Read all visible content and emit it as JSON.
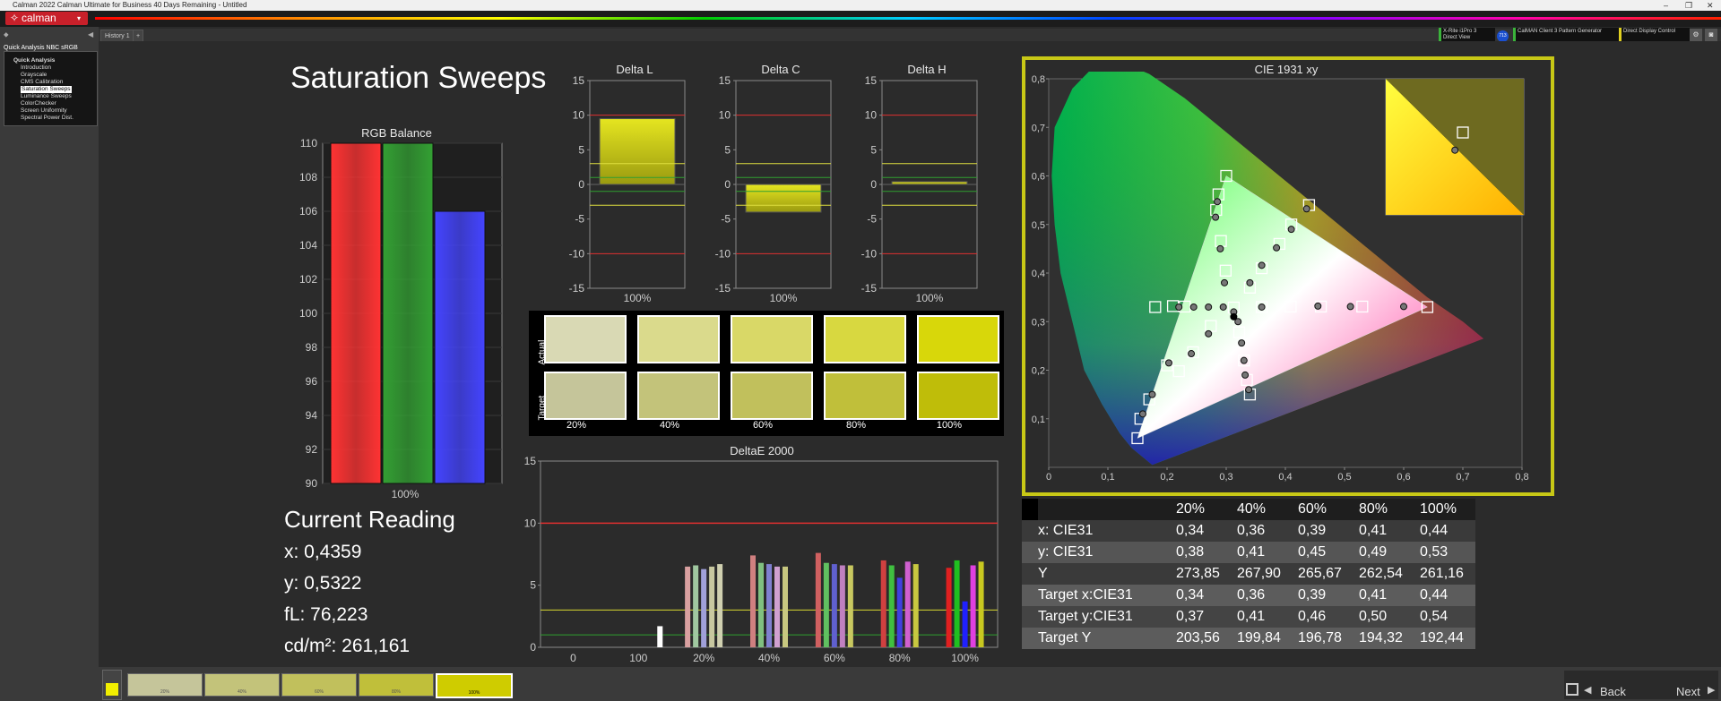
{
  "window": {
    "title": "Calman 2022 Calman Ultimate for Business 40 Days Remaining  - Untitled"
  },
  "app": {
    "logo": "calman"
  },
  "tabs": [
    {
      "label": "History 1"
    }
  ],
  "sidebar": {
    "header": "Quick Analysis NBC sRGB",
    "items": [
      {
        "label": "Quick Analysis"
      },
      {
        "label": "Introduction"
      },
      {
        "label": "Grayscale"
      },
      {
        "label": "CMS Calibration"
      },
      {
        "label": "Saturation Sweeps"
      },
      {
        "label": "Luminance Sweeps"
      },
      {
        "label": "ColorChecker"
      },
      {
        "label": "Screen Uniformity"
      },
      {
        "label": "Spectral Power Dist."
      }
    ]
  },
  "devices": {
    "meter_line1": "X-Rite i1Pro 3",
    "meter_line2": "Direct View",
    "badge": "713",
    "generator": "CalMAN Client 3 Pattern Generator",
    "display": "Direct Display Control"
  },
  "page_title": "Saturation Sweeps",
  "current_reading": {
    "heading": "Current Reading",
    "x": "x: 0,4359",
    "y": "y: 0,5322",
    "fl": "fL: 76,223",
    "cd": "cd/m²: 261,161"
  },
  "swatches": {
    "row_labels": {
      "actual": "Actual",
      "target": "Target"
    },
    "labels": [
      "20%",
      "40%",
      "60%",
      "80%",
      "100%"
    ],
    "actual_colors": [
      "#d9d9b4",
      "#dada8c",
      "#d9d867",
      "#d8d840",
      "#d8d70a"
    ],
    "target_colors": [
      "#c5c59a",
      "#c3c37a",
      "#c1c05c",
      "#c0bf3a",
      "#bfbd09"
    ]
  },
  "data_table": {
    "headers": [
      "20%",
      "40%",
      "60%",
      "80%",
      "100%"
    ],
    "rows": [
      {
        "label": "x: CIE31",
        "values": [
          "0,34",
          "0,36",
          "0,39",
          "0,41",
          "0,44"
        ]
      },
      {
        "label": "y: CIE31",
        "values": [
          "0,38",
          "0,41",
          "0,45",
          "0,49",
          "0,53"
        ]
      },
      {
        "label": "Y",
        "values": [
          "273,85",
          "267,90",
          "265,67",
          "262,54",
          "261,16"
        ]
      },
      {
        "label": "Target x:CIE31",
        "values": [
          "0,34",
          "0,36",
          "0,39",
          "0,41",
          "0,44"
        ]
      },
      {
        "label": "Target y:CIE31",
        "values": [
          "0,37",
          "0,41",
          "0,46",
          "0,50",
          "0,54"
        ]
      },
      {
        "label": "Target Y",
        "values": [
          "203,56",
          "199,84",
          "196,78",
          "194,32",
          "192,44"
        ]
      }
    ]
  },
  "bottom": {
    "thumb_labels": [
      "20%",
      "40%",
      "60%",
      "80%",
      "100%"
    ],
    "back": "Back",
    "next": "Next"
  },
  "chart_data": [
    {
      "id": "rgb",
      "type": "bar",
      "title": "RGB Balance",
      "categories": [
        "100%"
      ],
      "series": [
        {
          "values": [
            110
          ],
          "color": "#ff3333"
        },
        {
          "values": [
            110
          ],
          "color": "#33a033"
        },
        {
          "values": [
            106
          ],
          "color": "#4444ff"
        }
      ],
      "ylim": [
        90,
        110
      ],
      "yticks": [
        90,
        92,
        94,
        96,
        98,
        100,
        102,
        104,
        106,
        108,
        110
      ]
    },
    {
      "id": "deltaL",
      "type": "bar",
      "title": "Delta L",
      "categories": [
        "100%"
      ],
      "values": [
        9.5
      ],
      "ylim": [
        -15,
        15
      ],
      "yticks": [
        -15,
        -10,
        -5,
        0,
        5,
        10,
        15
      ],
      "limit_lines": {
        "red": [
          10,
          -10
        ],
        "yellow": [
          3,
          -3
        ],
        "green": [
          1,
          -1
        ]
      }
    },
    {
      "id": "deltaC",
      "type": "bar",
      "title": "Delta C",
      "categories": [
        "100%"
      ],
      "values": [
        -4
      ],
      "ylim": [
        -15,
        15
      ],
      "yticks": [
        -15,
        -10,
        -5,
        0,
        5,
        10,
        15
      ],
      "limit_lines": {
        "red": [
          10,
          -10
        ],
        "yellow": [
          3,
          -3
        ],
        "green": [
          1,
          -1
        ]
      }
    },
    {
      "id": "deltaH",
      "type": "bar",
      "title": "Delta H",
      "categories": [
        "100%"
      ],
      "values": [
        0.4
      ],
      "ylim": [
        -15,
        15
      ],
      "yticks": [
        -15,
        -10,
        -5,
        0,
        5,
        10,
        15
      ],
      "limit_lines": {
        "red": [
          10,
          -10
        ],
        "yellow": [
          3,
          -3
        ],
        "green": [
          1,
          -1
        ]
      }
    },
    {
      "id": "deltaE",
      "type": "bar",
      "title": "DeltaE 2000",
      "categories": [
        "0",
        "100",
        "20%",
        "40%",
        "60%",
        "80%",
        "100%"
      ],
      "groups": [
        {
          "label": "0",
          "values": []
        },
        {
          "label": "100",
          "values": [
            1.7
          ],
          "colors": [
            "#ffffff"
          ]
        },
        {
          "label": "20%",
          "values": [
            6.5,
            6.6,
            6.3,
            6.5,
            6.7
          ],
          "colors": [
            "#d9a0a0",
            "#a0c8a0",
            "#a0a0d9",
            "#c8c8a0",
            "#d0d0b0"
          ]
        },
        {
          "label": "40%",
          "values": [
            7.4,
            6.8,
            6.7,
            6.5,
            6.5
          ],
          "colors": [
            "#d08080",
            "#80c080",
            "#8080d0",
            "#d0a0d0",
            "#c8c880"
          ]
        },
        {
          "label": "60%",
          "values": [
            7.6,
            6.8,
            6.7,
            6.6,
            6.6
          ],
          "colors": [
            "#d06060",
            "#60c060",
            "#6060d0",
            "#c080c0",
            "#c8c860"
          ]
        },
        {
          "label": "80%",
          "values": [
            7.0,
            6.6,
            5.6,
            6.9,
            6.7
          ],
          "colors": [
            "#d04040",
            "#40c040",
            "#4040e0",
            "#d060d0",
            "#c8c840"
          ]
        },
        {
          "label": "100%",
          "values": [
            6.4,
            7.0,
            3.7,
            6.6,
            6.9
          ],
          "colors": [
            "#e02020",
            "#20c020",
            "#2020ff",
            "#e040e0",
            "#c8c820"
          ]
        }
      ],
      "ylim": [
        0,
        15
      ],
      "yticks": [
        0,
        5,
        10,
        15
      ],
      "limit_lines": {
        "red": [
          10
        ],
        "yellow": [
          3
        ],
        "green": [
          1
        ]
      }
    },
    {
      "id": "cie",
      "type": "scatter",
      "title": "CIE 1931 xy",
      "xlim": [
        0,
        0.8
      ],
      "ylim": [
        0,
        0.8
      ],
      "xticks": [
        0,
        0.1,
        0.2,
        0.3,
        0.4,
        0.5,
        0.6,
        0.7,
        0.8
      ],
      "yticks": [
        0.1,
        0.2,
        0.3,
        0.4,
        0.5,
        0.6,
        0.7,
        0.8
      ],
      "gamut": [
        [
          0.64,
          0.33
        ],
        [
          0.3,
          0.6
        ],
        [
          0.15,
          0.06
        ]
      ],
      "white": [
        0.3127,
        0.329
      ],
      "targets": [
        [
          0.3127,
          0.329
        ],
        [
          0.36,
          0.33
        ],
        [
          0.409,
          0.331
        ],
        [
          0.46,
          0.331
        ],
        [
          0.53,
          0.331
        ],
        [
          0.64,
          0.33
        ],
        [
          0.299,
          0.405
        ],
        [
          0.291,
          0.466
        ],
        [
          0.283,
          0.53
        ],
        [
          0.287,
          0.562
        ],
        [
          0.3,
          0.6
        ],
        [
          0.2,
          0.21
        ],
        [
          0.17,
          0.14
        ],
        [
          0.155,
          0.1
        ],
        [
          0.15,
          0.06
        ],
        [
          0.274,
          0.291
        ],
        [
          0.244,
          0.237
        ],
        [
          0.22,
          0.198
        ],
        [
          0.23,
          0.331
        ],
        [
          0.21,
          0.332
        ],
        [
          0.18,
          0.33
        ],
        [
          0.322,
          0.278
        ],
        [
          0.33,
          0.22
        ],
        [
          0.335,
          0.18
        ],
        [
          0.34,
          0.15
        ],
        [
          0.34,
          0.37
        ],
        [
          0.36,
          0.41
        ],
        [
          0.39,
          0.46
        ],
        [
          0.41,
          0.5
        ],
        [
          0.44,
          0.54
        ]
      ],
      "measured": [
        [
          0.3127,
          0.32
        ],
        [
          0.36,
          0.33
        ],
        [
          0.455,
          0.332
        ],
        [
          0.51,
          0.331
        ],
        [
          0.6,
          0.331
        ],
        [
          0.297,
          0.38
        ],
        [
          0.29,
          0.45
        ],
        [
          0.282,
          0.515
        ],
        [
          0.285,
          0.547
        ],
        [
          0.203,
          0.215
        ],
        [
          0.175,
          0.15
        ],
        [
          0.159,
          0.11
        ],
        [
          0.27,
          0.275
        ],
        [
          0.241,
          0.234
        ],
        [
          0.22,
          0.33
        ],
        [
          0.245,
          0.33
        ],
        [
          0.27,
          0.33
        ],
        [
          0.295,
          0.33
        ],
        [
          0.32,
          0.3
        ],
        [
          0.326,
          0.256
        ],
        [
          0.33,
          0.22
        ],
        [
          0.332,
          0.19
        ],
        [
          0.338,
          0.16
        ],
        [
          0.34,
          0.38
        ],
        [
          0.36,
          0.416
        ],
        [
          0.385,
          0.452
        ],
        [
          0.41,
          0.49
        ],
        [
          0.4359,
          0.5322
        ]
      ],
      "current": [
        0.3127,
        0.31
      ],
      "inset": {
        "target": [
          0.44,
          0.54
        ],
        "measured": [
          0.4359,
          0.5322
        ]
      }
    }
  ]
}
